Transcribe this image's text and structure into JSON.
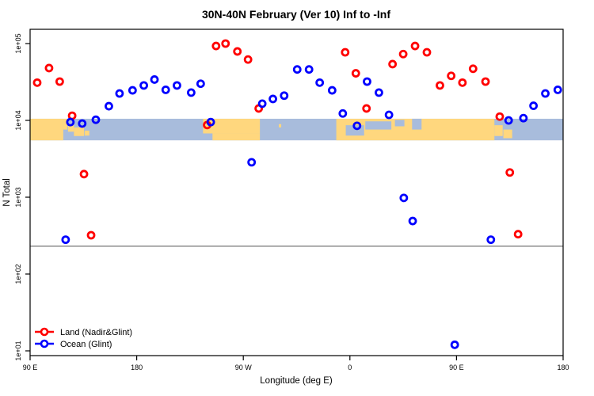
{
  "title": "30N-40N February (Ver 10)   Inf to -Inf",
  "axes": {
    "xlabel": "Longitude (deg E)",
    "ylabel": "N Total"
  },
  "legend": {
    "items": [
      {
        "label": "Land (Nadir&Glint)",
        "color": "#FF0000"
      },
      {
        "label": "Ocean (Glint)",
        "color": "#0000FF"
      }
    ]
  },
  "chart_data": {
    "type": "scatter",
    "title": "30N-40N February (Ver 10)   Inf to -Inf",
    "xlabel": "Longitude (deg E)",
    "ylabel": "N Total",
    "y_scale": "log",
    "xlim": [
      90,
      540
    ],
    "ylim": [
      8.7,
      155000
    ],
    "x_ticks": [
      {
        "value": 90,
        "label": "90 E"
      },
      {
        "value": 180,
        "label": "180"
      },
      {
        "value": 270,
        "label": "90 W"
      },
      {
        "value": 360,
        "label": "0"
      },
      {
        "value": 450,
        "label": "90 E"
      },
      {
        "value": 540,
        "label": "180"
      }
    ],
    "y_ticks": [
      {
        "value": 100000,
        "label": "1e+05"
      },
      {
        "value": 10000,
        "label": "1e+04"
      },
      {
        "value": 1000,
        "label": "1e+03"
      },
      {
        "value": 100,
        "label": "1e+02"
      },
      {
        "value": 10,
        "label": "1e+01"
      }
    ],
    "reference_line_value": 230,
    "map_band": {
      "description": "30N-40N latitude strip of world map drawn across the plot",
      "value_top": 10500,
      "value_bottom": 5500,
      "ocean_color": "#A8BCDC",
      "land_color": "#FFD77E",
      "land_segments": [
        [
          90,
          118,
          0,
          1
        ],
        [
          118,
          121.5,
          0,
          0.5
        ],
        [
          122,
          127,
          0.25,
          0.6
        ],
        [
          127,
          135.5,
          0.4,
          0.8
        ],
        [
          136,
          140,
          0.55,
          0.78
        ],
        [
          236,
          284,
          0,
          0.68
        ],
        [
          244,
          284,
          0.68,
          1
        ],
        [
          300,
          302,
          0.25,
          0.4
        ],
        [
          348.5,
          482,
          0,
          1
        ],
        [
          482,
          489,
          0.3,
          0.8
        ],
        [
          489.5,
          497,
          0.5,
          0.9
        ]
      ],
      "sea_patches": [
        [
          356.5,
          372,
          0.3,
          0.78
        ],
        [
          373,
          395,
          0.12,
          0.5
        ],
        [
          398,
          406,
          0.05,
          0.35
        ],
        [
          412.5,
          420.5,
          0,
          0.5
        ]
      ]
    },
    "series": [
      {
        "name": "Land (Nadir&Glint)",
        "color": "#FF0000",
        "marker": "open-circle",
        "points": [
          [
            96,
            31000
          ],
          [
            106,
            48000
          ],
          [
            115,
            32000
          ],
          [
            125.5,
            11500
          ],
          [
            135.5,
            2000
          ],
          [
            141.5,
            320
          ],
          [
            239.5,
            8700
          ],
          [
            247,
            93000
          ],
          [
            255,
            100000
          ],
          [
            265,
            79000
          ],
          [
            274,
            62000
          ],
          [
            283,
            14300
          ],
          [
            356,
            77000
          ],
          [
            365,
            41000
          ],
          [
            374,
            14300
          ],
          [
            396,
            54000
          ],
          [
            405,
            73000
          ],
          [
            415,
            93000
          ],
          [
            425,
            77000
          ],
          [
            436,
            28500
          ],
          [
            445.5,
            38000
          ],
          [
            455,
            31000
          ],
          [
            464,
            47000
          ],
          [
            474.5,
            32000
          ],
          [
            486.5,
            11200
          ],
          [
            495,
            2100
          ],
          [
            502,
            330
          ]
        ]
      },
      {
        "name": "Ocean (Glint)",
        "color": "#0000FF",
        "marker": "open-circle",
        "points": [
          [
            120,
            280
          ],
          [
            124,
            9500
          ],
          [
            134,
            9100
          ],
          [
            145.5,
            10200
          ],
          [
            156.5,
            15300
          ],
          [
            165.5,
            22400
          ],
          [
            176.5,
            24600
          ],
          [
            186,
            28500
          ],
          [
            195,
            34000
          ],
          [
            204.5,
            25000
          ],
          [
            214,
            28500
          ],
          [
            226,
            23000
          ],
          [
            234,
            30000
          ],
          [
            242.5,
            9500
          ],
          [
            277,
            2850
          ],
          [
            286,
            16500
          ],
          [
            295,
            19000
          ],
          [
            304.5,
            21000
          ],
          [
            315.5,
            46000
          ],
          [
            325.5,
            46000
          ],
          [
            334.5,
            31000
          ],
          [
            345,
            24600
          ],
          [
            354,
            12300
          ],
          [
            366,
            8500
          ],
          [
            374.5,
            32000
          ],
          [
            384.5,
            23000
          ],
          [
            393,
            11800
          ],
          [
            405.5,
            980
          ],
          [
            413,
            490
          ],
          [
            448.5,
            12
          ],
          [
            479,
            280
          ],
          [
            494,
            10000
          ],
          [
            506.5,
            10700
          ],
          [
            515,
            15500
          ],
          [
            525,
            22400
          ],
          [
            535.5,
            25000
          ]
        ]
      }
    ]
  }
}
